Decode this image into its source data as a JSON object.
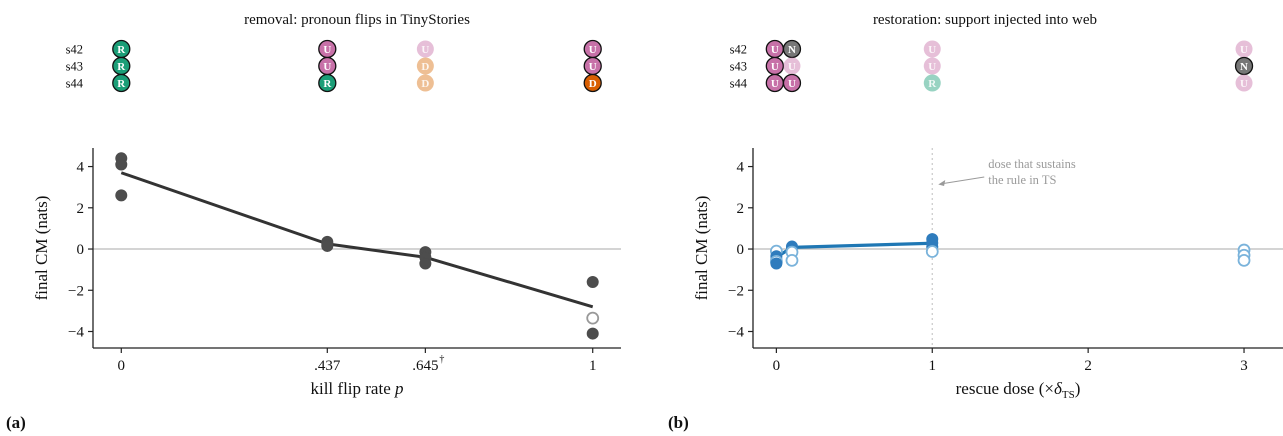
{
  "chart_data": [
    {
      "panel_label": "(a)",
      "title": "removal: pronoun flips in TinyStories",
      "type": "scatter",
      "xlabel_prefix": "kill flip rate ",
      "xlabel_var": "p",
      "ylabel": "final CM (nats)",
      "ylim": [
        -4.8,
        4.9
      ],
      "yticks": [
        -4,
        -2,
        0,
        2,
        4
      ],
      "ytick_labels": [
        "−4",
        "−2",
        "0",
        "2",
        "4"
      ],
      "xlim": [
        -0.06,
        1.06
      ],
      "xticks": [
        0,
        0.437,
        0.645,
        1
      ],
      "xtick_labels": [
        "0",
        ".437",
        ".645",
        "1"
      ],
      "xtick_marks": {
        ".645": "†"
      },
      "reference_line_y": 0,
      "fit_line": {
        "x": [
          0,
          0.437,
          0.645,
          1
        ],
        "y": [
          3.7,
          0.25,
          -0.4,
          -2.8
        ]
      },
      "points": [
        {
          "x": 0,
          "y": 4.4,
          "filled": true
        },
        {
          "x": 0,
          "y": 4.1,
          "filled": true
        },
        {
          "x": 0,
          "y": 2.6,
          "filled": true
        },
        {
          "x": 0.437,
          "y": 0.35,
          "filled": true
        },
        {
          "x": 0.437,
          "y": 0.25,
          "filled": true
        },
        {
          "x": 0.437,
          "y": 0.15,
          "filled": true
        },
        {
          "x": 0.645,
          "y": -0.15,
          "filled": true
        },
        {
          "x": 0.645,
          "y": -0.4,
          "filled": true
        },
        {
          "x": 0.645,
          "y": -0.7,
          "filled": true
        },
        {
          "x": 1,
          "y": -1.6,
          "filled": true
        },
        {
          "x": 1,
          "y": -3.35,
          "filled": false
        },
        {
          "x": 1,
          "y": -4.1,
          "filled": true
        }
      ],
      "marker_rows": [
        {
          "label": "s42",
          "markers": [
            {
              "x": 0,
              "letter": "R",
              "color": "#1b9e77",
              "alpha": 1,
              "outline": true
            },
            {
              "x": 0.437,
              "letter": "U",
              "color": "#c771a8",
              "alpha": 1,
              "outline": true
            },
            {
              "x": 0.645,
              "letter": "U",
              "color": "#c771a8",
              "alpha": 0.45,
              "outline": false
            },
            {
              "x": 1,
              "letter": "U",
              "color": "#c771a8",
              "alpha": 1,
              "outline": true
            }
          ]
        },
        {
          "label": "s43",
          "markers": [
            {
              "x": 0,
              "letter": "R",
              "color": "#1b9e77",
              "alpha": 1,
              "outline": true
            },
            {
              "x": 0.437,
              "letter": "U",
              "color": "#c771a8",
              "alpha": 1,
              "outline": true
            },
            {
              "x": 0.645,
              "letter": "D",
              "color": "#e08a3c",
              "alpha": 0.55,
              "outline": false
            },
            {
              "x": 1,
              "letter": "U",
              "color": "#c771a8",
              "alpha": 1,
              "outline": true
            }
          ]
        },
        {
          "label": "s44",
          "markers": [
            {
              "x": 0,
              "letter": "R",
              "color": "#1b9e77",
              "alpha": 1,
              "outline": true
            },
            {
              "x": 0.437,
              "letter": "R",
              "color": "#1b9e77",
              "alpha": 1,
              "outline": true
            },
            {
              "x": 0.645,
              "letter": "D",
              "color": "#e08a3c",
              "alpha": 0.55,
              "outline": false
            },
            {
              "x": 1,
              "letter": "D",
              "color": "#d95f02",
              "alpha": 1,
              "outline": true
            }
          ]
        }
      ]
    },
    {
      "panel_label": "(b)",
      "title": "restoration: support injected into web",
      "type": "scatter",
      "xlabel_prefix": "rescue dose (×",
      "xlabel_var": "δ",
      "xlabel_sub": "TS",
      "xlabel_suffix": ")",
      "ylabel": "final CM (nats)",
      "ylim": [
        -4.8,
        4.9
      ],
      "yticks": [
        -4,
        -2,
        0,
        2,
        4
      ],
      "ytick_labels": [
        "−4",
        "−2",
        "0",
        "2",
        "4"
      ],
      "xlim": [
        -0.15,
        3.25
      ],
      "xticks": [
        0,
        1,
        2,
        3
      ],
      "xtick_labels": [
        "0",
        "1",
        "2",
        "3"
      ],
      "reference_line_y": 0,
      "vline_x": 1,
      "annotation": {
        "lines": [
          "dose that sustains",
          "the rule in TS"
        ]
      },
      "fit_line": {
        "x": [
          0,
          0.1,
          1
        ],
        "y": [
          -0.4,
          0.08,
          0.28
        ]
      },
      "points": [
        {
          "x": 0,
          "y": -0.1,
          "filled": false
        },
        {
          "x": 0,
          "y": -0.35,
          "filled": true
        },
        {
          "x": 0,
          "y": -0.5,
          "filled": true
        },
        {
          "x": 0,
          "y": -0.6,
          "filled": false
        },
        {
          "x": 0,
          "y": -0.7,
          "filled": true
        },
        {
          "x": 0.1,
          "y": 0.12,
          "filled": true
        },
        {
          "x": 0.1,
          "y": 0.05,
          "filled": true
        },
        {
          "x": 0.1,
          "y": -0.15,
          "filled": false
        },
        {
          "x": 0.1,
          "y": -0.55,
          "filled": false
        },
        {
          "x": 1,
          "y": 0.48,
          "filled": true
        },
        {
          "x": 1,
          "y": 0.3,
          "filled": true
        },
        {
          "x": 1,
          "y": 0.1,
          "filled": true
        },
        {
          "x": 1,
          "y": -0.12,
          "filled": false
        },
        {
          "x": 3,
          "y": -0.05,
          "filled": false
        },
        {
          "x": 3,
          "y": -0.3,
          "filled": false
        },
        {
          "x": 3,
          "y": -0.55,
          "filled": false
        }
      ],
      "marker_rows": [
        {
          "label": "s42",
          "markers": [
            {
              "x": -0.01,
              "letter": "U",
              "color": "#c771a8",
              "alpha": 1,
              "outline": true
            },
            {
              "x": 0.1,
              "letter": "N",
              "color": "#777777",
              "alpha": 1,
              "outline": true
            },
            {
              "x": 1,
              "letter": "U",
              "color": "#c771a8",
              "alpha": 0.45,
              "outline": false
            },
            {
              "x": 3,
              "letter": "U",
              "color": "#c771a8",
              "alpha": 0.45,
              "outline": false
            }
          ]
        },
        {
          "label": "s43",
          "markers": [
            {
              "x": -0.01,
              "letter": "U",
              "color": "#c771a8",
              "alpha": 1,
              "outline": true
            },
            {
              "x": 0.1,
              "letter": "U",
              "color": "#c771a8",
              "alpha": 0.45,
              "outline": false
            },
            {
              "x": 1,
              "letter": "U",
              "color": "#c771a8",
              "alpha": 0.45,
              "outline": false
            },
            {
              "x": 3,
              "letter": "N",
              "color": "#777777",
              "alpha": 1,
              "outline": true
            }
          ]
        },
        {
          "label": "s44",
          "markers": [
            {
              "x": -0.01,
              "letter": "U",
              "color": "#c771a8",
              "alpha": 1,
              "outline": true
            },
            {
              "x": 0.1,
              "letter": "U",
              "color": "#c771a8",
              "alpha": 1,
              "outline": true
            },
            {
              "x": 1,
              "letter": "R",
              "color": "#1b9e77",
              "alpha": 0.45,
              "outline": false
            },
            {
              "x": 3,
              "letter": "U",
              "color": "#c771a8",
              "alpha": 0.45,
              "outline": false
            }
          ]
        }
      ]
    }
  ],
  "colors": {
    "a_points": "#4d4d4d",
    "a_line": "#333333",
    "a_open": "#999999",
    "b_points": "#2f7cbd",
    "b_open": "#7ab3db",
    "b_line": "#1f77b4",
    "reference_line": "#bbbbbb",
    "vline": "#c8c8c8",
    "annotation": "#9a9a9a",
    "axis": "#222222"
  }
}
